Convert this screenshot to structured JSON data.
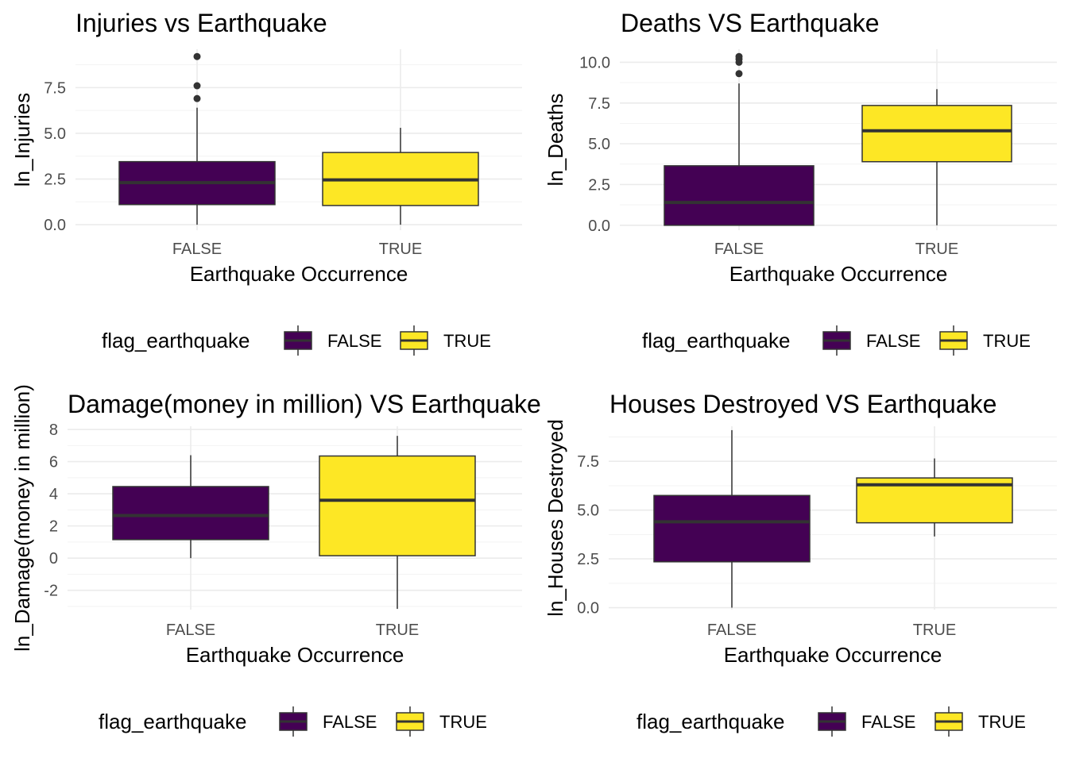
{
  "chart_data": [
    {
      "type": "box",
      "title": "Injuries vs Earthquake",
      "xlabel": "Earthquake Occurrence",
      "ylabel": "ln_Injuries",
      "categories": [
        "FALSE",
        "TRUE"
      ],
      "ylim": [
        -0.3,
        9.6
      ],
      "yticks": [
        0.0,
        2.5,
        5.0,
        7.5
      ],
      "ytick_labels": [
        "0.0",
        "2.5",
        "5.0",
        "7.5"
      ],
      "boxes": [
        {
          "category": "FALSE",
          "fill": "#440154",
          "whisker_low": 0.0,
          "q1": 1.1,
          "median": 2.3,
          "q3": 3.45,
          "whisker_high": 6.4,
          "outliers": [
            6.9,
            7.6,
            9.2
          ]
        },
        {
          "category": "TRUE",
          "fill": "#FDE725",
          "whisker_low": 0.0,
          "q1": 1.05,
          "median": 2.45,
          "q3": 3.95,
          "whisker_high": 5.3,
          "outliers": []
        }
      ],
      "legend": {
        "title": "flag_earthquake",
        "entries": [
          {
            "label": "FALSE",
            "color": "#440154"
          },
          {
            "label": "TRUE",
            "color": "#FDE725"
          }
        ],
        "position": "bottom"
      }
    },
    {
      "type": "box",
      "title": "Deaths VS Earthquake",
      "xlabel": "Earthquake Occurrence",
      "ylabel": "ln_Deaths",
      "categories": [
        "FALSE",
        "TRUE"
      ],
      "ylim": [
        -0.3,
        10.8
      ],
      "yticks": [
        0.0,
        2.5,
        5.0,
        7.5,
        10.0
      ],
      "ytick_labels": [
        "0.0",
        "2.5",
        "5.0",
        "7.5",
        "10.0"
      ],
      "boxes": [
        {
          "category": "FALSE",
          "fill": "#440154",
          "whisker_low": 0.0,
          "q1": 0.0,
          "median": 1.4,
          "q3": 3.65,
          "whisker_high": 8.7,
          "outliers": [
            9.3,
            10.0,
            10.2,
            10.35
          ]
        },
        {
          "category": "TRUE",
          "fill": "#FDE725",
          "whisker_low": 0.0,
          "q1": 3.9,
          "median": 5.8,
          "q3": 7.35,
          "whisker_high": 8.35,
          "outliers": []
        }
      ],
      "legend": {
        "title": "flag_earthquake",
        "entries": [
          {
            "label": "FALSE",
            "color": "#440154"
          },
          {
            "label": "TRUE",
            "color": "#FDE725"
          }
        ],
        "position": "bottom"
      }
    },
    {
      "type": "box",
      "title": "Damage(money in million) VS Earthquake",
      "xlabel": "Earthquake Occurrence",
      "ylabel": "ln_Damage(money in million)",
      "categories": [
        "FALSE",
        "TRUE"
      ],
      "ylim": [
        -3.2,
        8.2
      ],
      "yticks": [
        -2,
        0,
        2,
        4,
        6,
        8
      ],
      "ytick_labels": [
        "-2",
        "0",
        "2",
        "4",
        "6",
        "8"
      ],
      "boxes": [
        {
          "category": "FALSE",
          "fill": "#440154",
          "whisker_low": 0.0,
          "q1": 1.15,
          "median": 2.65,
          "q3": 4.45,
          "whisker_high": 6.4,
          "outliers": []
        },
        {
          "category": "TRUE",
          "fill": "#FDE725",
          "whisker_low": -3.15,
          "q1": 0.15,
          "median": 3.6,
          "q3": 6.35,
          "whisker_high": 7.6,
          "outliers": []
        }
      ],
      "legend": {
        "title": "flag_earthquake",
        "entries": [
          {
            "label": "FALSE",
            "color": "#440154"
          },
          {
            "label": "TRUE",
            "color": "#FDE725"
          }
        ],
        "position": "bottom"
      }
    },
    {
      "type": "box",
      "title": "Houses Destroyed VS Earthquake",
      "xlabel": "Earthquake Occurrence",
      "ylabel": "ln_Houses Destroyed",
      "categories": [
        "FALSE",
        "TRUE"
      ],
      "ylim": [
        -0.1,
        9.3
      ],
      "yticks": [
        0.0,
        2.5,
        5.0,
        7.5
      ],
      "ytick_labels": [
        "0.0",
        "2.5",
        "5.0",
        "7.5"
      ],
      "boxes": [
        {
          "category": "FALSE",
          "fill": "#440154",
          "whisker_low": 0.0,
          "q1": 2.35,
          "median": 4.4,
          "q3": 5.75,
          "whisker_high": 9.1,
          "outliers": []
        },
        {
          "category": "TRUE",
          "fill": "#FDE725",
          "whisker_low": 3.65,
          "q1": 4.35,
          "median": 6.3,
          "q3": 6.65,
          "whisker_high": 7.65,
          "outliers": []
        }
      ],
      "legend": {
        "title": "flag_earthquake",
        "entries": [
          {
            "label": "FALSE",
            "color": "#440154"
          },
          {
            "label": "TRUE",
            "color": "#FDE725"
          }
        ],
        "position": "bottom"
      }
    }
  ]
}
